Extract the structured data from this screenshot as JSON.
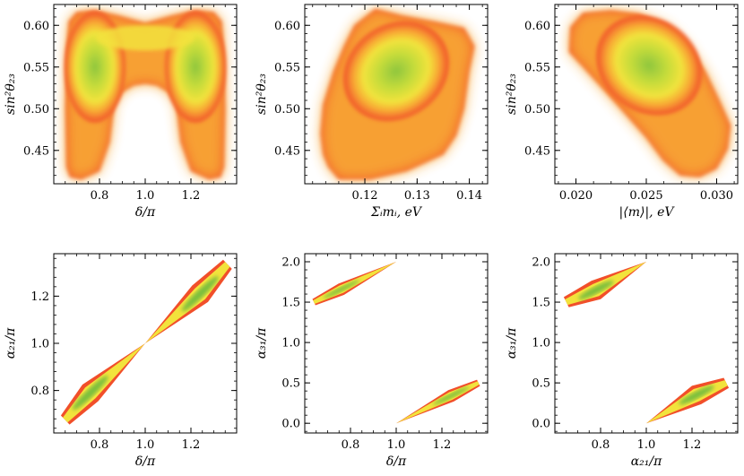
{
  "chart_data": [
    {
      "type": "density",
      "id": "p1",
      "xlabel": "δ/π",
      "ylabel": "sin²θ₂₃",
      "xlim": [
        0.6,
        1.4
      ],
      "ylim": [
        0.41,
        0.625
      ],
      "xticks": [
        0.8,
        1.0,
        1.2
      ],
      "xtick_labels": [
        "0.8",
        "1.0",
        "1.2"
      ],
      "yticks": [
        0.45,
        0.5,
        0.55,
        0.6
      ],
      "ytick_labels": [
        "0.45",
        "0.50",
        "0.55",
        "0.60"
      ],
      "shape": "m",
      "peaks": [
        {
          "x": 0.78,
          "y": 0.55
        },
        {
          "x": 1.22,
          "y": 0.55
        }
      ]
    },
    {
      "type": "density",
      "id": "p2",
      "xlabel": "Σᵢmᵢ, eV",
      "ylabel": "sin²θ₂₃",
      "xlim": [
        0.1085,
        0.1435
      ],
      "ylim": [
        0.41,
        0.625
      ],
      "xticks": [
        0.12,
        0.13,
        0.14
      ],
      "xtick_labels": [
        "0.12",
        "0.13",
        "0.14"
      ],
      "yticks": [
        0.45,
        0.5,
        0.55,
        0.6
      ],
      "ytick_labels": [
        "0.45",
        "0.50",
        "0.55",
        "0.60"
      ],
      "shape": "polygon",
      "outline": [
        [
          0.113,
          0.43
        ],
        [
          0.115,
          0.415
        ],
        [
          0.121,
          0.415
        ],
        [
          0.128,
          0.425
        ],
        [
          0.135,
          0.445
        ],
        [
          0.1375,
          0.468
        ],
        [
          0.139,
          0.5
        ],
        [
          0.14,
          0.545
        ],
        [
          0.141,
          0.575
        ],
        [
          0.139,
          0.597
        ],
        [
          0.133,
          0.605
        ],
        [
          0.127,
          0.612
        ],
        [
          0.122,
          0.62
        ],
        [
          0.118,
          0.6
        ],
        [
          0.116,
          0.575
        ],
        [
          0.114,
          0.545
        ],
        [
          0.112,
          0.505
        ],
        [
          0.1115,
          0.47
        ],
        [
          0.112,
          0.445
        ]
      ],
      "peaks": [
        {
          "x": 0.126,
          "y": 0.545
        }
      ]
    },
    {
      "type": "density",
      "id": "p3",
      "xlabel": "|⟨m⟩|, eV",
      "ylabel": "sin²θ₂₃",
      "xlim": [
        0.0185,
        0.0315
      ],
      "ylim": [
        0.41,
        0.625
      ],
      "xticks": [
        0.02,
        0.025,
        0.03
      ],
      "xtick_labels": [
        "0.020",
        "0.025",
        "0.030"
      ],
      "yticks": [
        0.45,
        0.5,
        0.55,
        0.6
      ],
      "ytick_labels": [
        "0.45",
        "0.50",
        "0.55",
        "0.60"
      ],
      "shape": "polygon",
      "outline": [
        [
          0.0195,
          0.568
        ],
        [
          0.0196,
          0.598
        ],
        [
          0.0205,
          0.615
        ],
        [
          0.0225,
          0.618
        ],
        [
          0.0245,
          0.614
        ],
        [
          0.0265,
          0.6
        ],
        [
          0.028,
          0.575
        ],
        [
          0.0292,
          0.545
        ],
        [
          0.0302,
          0.51
        ],
        [
          0.031,
          0.48
        ],
        [
          0.0308,
          0.452
        ],
        [
          0.03,
          0.428
        ],
        [
          0.0288,
          0.418
        ],
        [
          0.0274,
          0.42
        ],
        [
          0.0262,
          0.438
        ],
        [
          0.025,
          0.465
        ],
        [
          0.0236,
          0.492
        ],
        [
          0.022,
          0.522
        ],
        [
          0.0205,
          0.55
        ]
      ],
      "peaks": [
        {
          "x": 0.0252,
          "y": 0.552
        }
      ]
    },
    {
      "type": "density",
      "id": "p4",
      "xlabel": "δ/π",
      "ylabel": "α₂₁/π",
      "xlim": [
        0.6,
        1.4
      ],
      "ylim": [
        0.62,
        1.38
      ],
      "xticks": [
        0.8,
        1.0,
        1.2
      ],
      "xtick_labels": [
        "0.8",
        "1.0",
        "1.2"
      ],
      "yticks": [
        0.8,
        1.0,
        1.2
      ],
      "ytick_labels": [
        "0.8",
        "1.0",
        "1.2"
      ],
      "shape": "bands",
      "bands": [
        {
          "from": [
            0.65,
            0.675
          ],
          "to": [
            1.0,
            1.0
          ],
          "width": 0.1,
          "peak": [
            0.76,
            0.79
          ]
        },
        {
          "from": [
            1.0,
            1.0
          ],
          "to": [
            1.36,
            1.335
          ],
          "width": 0.1,
          "peak": [
            1.24,
            1.21
          ]
        }
      ]
    },
    {
      "type": "density",
      "id": "p5",
      "xlabel": "δ/π",
      "ylabel": "α₃₁/π",
      "xlim": [
        0.6,
        1.4
      ],
      "ylim": [
        -0.12,
        2.1
      ],
      "xticks": [
        0.8,
        1.0,
        1.2
      ],
      "xtick_labels": [
        "0.8",
        "1.0",
        "1.2"
      ],
      "yticks": [
        0.0,
        0.5,
        1.0,
        1.5,
        2.0
      ],
      "ytick_labels": [
        "0.0",
        "0.5",
        "1.0",
        "1.5",
        "2.0"
      ],
      "shape": "bands",
      "bands": [
        {
          "from": [
            0.64,
            1.5
          ],
          "to": [
            1.0,
            2.0
          ],
          "width": 0.055,
          "peak": [
            0.76,
            1.66
          ]
        },
        {
          "from": [
            1.0,
            0.0
          ],
          "to": [
            1.36,
            0.5
          ],
          "width": 0.055,
          "peak": [
            1.24,
            0.34
          ]
        }
      ]
    },
    {
      "type": "density",
      "id": "p6",
      "xlabel": "α₂₁/π",
      "ylabel": "α₃₁/π",
      "xlim": [
        0.6,
        1.4
      ],
      "ylim": [
        -0.12,
        2.1
      ],
      "xticks": [
        0.8,
        1.0,
        1.2
      ],
      "xtick_labels": [
        "0.8",
        "1.0",
        "1.2"
      ],
      "yticks": [
        0.0,
        0.5,
        1.0,
        1.5,
        2.0
      ],
      "ytick_labels": [
        "0.0",
        "0.5",
        "1.0",
        "1.5",
        "2.0"
      ],
      "shape": "bands",
      "bands": [
        {
          "from": [
            0.65,
            1.5
          ],
          "to": [
            1.0,
            2.0
          ],
          "width": 0.09,
          "peak": [
            0.78,
            1.65
          ]
        },
        {
          "from": [
            1.0,
            0.0
          ],
          "to": [
            1.35,
            0.5
          ],
          "width": 0.09,
          "peak": [
            1.22,
            0.35
          ]
        }
      ]
    }
  ]
}
